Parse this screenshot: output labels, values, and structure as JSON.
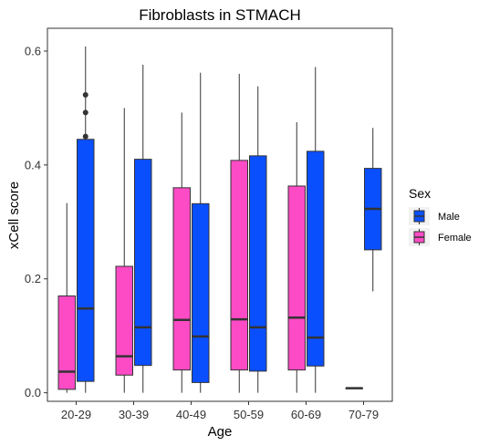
{
  "chart_data": {
    "type": "boxplot",
    "title": "Fibroblasts in STMACH",
    "xlabel": "Age",
    "ylabel": "xCell score",
    "categories": [
      "20-29",
      "30-39",
      "40-49",
      "50-59",
      "60-69",
      "70-79"
    ],
    "ylim": [
      -0.015,
      0.64
    ],
    "yticks": [
      0.0,
      0.2,
      0.4,
      0.6
    ],
    "ytick_labels": [
      "0.0",
      "0.2",
      "0.4",
      "0.6"
    ],
    "grid": false,
    "legend": {
      "title": "Sex",
      "position": "right",
      "entries": [
        {
          "name": "Male",
          "color": "#0a4ffd"
        },
        {
          "name": "Female",
          "color": "#fd4bc5"
        }
      ]
    },
    "series": [
      {
        "name": "Female",
        "color": "#fd4bc5",
        "boxes": [
          {
            "category": "20-29",
            "lower_whisker": 0.0,
            "q1": 0.006,
            "median": 0.037,
            "q3": 0.17,
            "upper_whisker": 0.333,
            "outliers": []
          },
          {
            "category": "30-39",
            "lower_whisker": 0.0,
            "q1": 0.031,
            "median": 0.064,
            "q3": 0.222,
            "upper_whisker": 0.5,
            "outliers": []
          },
          {
            "category": "40-49",
            "lower_whisker": 0.0,
            "q1": 0.04,
            "median": 0.128,
            "q3": 0.36,
            "upper_whisker": 0.492,
            "outliers": []
          },
          {
            "category": "50-59",
            "lower_whisker": 0.0,
            "q1": 0.04,
            "median": 0.129,
            "q3": 0.408,
            "upper_whisker": 0.56,
            "outliers": []
          },
          {
            "category": "60-69",
            "lower_whisker": 0.0,
            "q1": 0.04,
            "median": 0.132,
            "q3": 0.363,
            "upper_whisker": 0.475,
            "outliers": []
          },
          {
            "category": "70-79",
            "lower_whisker": 0.008,
            "q1": 0.008,
            "median": 0.008,
            "q3": 0.008,
            "upper_whisker": 0.008,
            "outliers": []
          }
        ]
      },
      {
        "name": "Male",
        "color": "#0a4ffd",
        "boxes": [
          {
            "category": "20-29",
            "lower_whisker": 0.0,
            "q1": 0.02,
            "median": 0.148,
            "q3": 0.445,
            "upper_whisker": 0.608,
            "outliers": [
              0.45,
              0.492,
              0.523
            ]
          },
          {
            "category": "30-39",
            "lower_whisker": 0.0,
            "q1": 0.048,
            "median": 0.115,
            "q3": 0.41,
            "upper_whisker": 0.576,
            "outliers": []
          },
          {
            "category": "40-49",
            "lower_whisker": 0.0,
            "q1": 0.018,
            "median": 0.099,
            "q3": 0.332,
            "upper_whisker": 0.562,
            "outliers": []
          },
          {
            "category": "50-59",
            "lower_whisker": 0.0,
            "q1": 0.038,
            "median": 0.115,
            "q3": 0.416,
            "upper_whisker": 0.538,
            "outliers": []
          },
          {
            "category": "60-69",
            "lower_whisker": 0.0,
            "q1": 0.047,
            "median": 0.097,
            "q3": 0.424,
            "upper_whisker": 0.572,
            "outliers": []
          },
          {
            "category": "70-79",
            "lower_whisker": 0.178,
            "q1": 0.251,
            "median": 0.323,
            "q3": 0.394,
            "upper_whisker": 0.465,
            "outliers": []
          }
        ]
      }
    ]
  }
}
